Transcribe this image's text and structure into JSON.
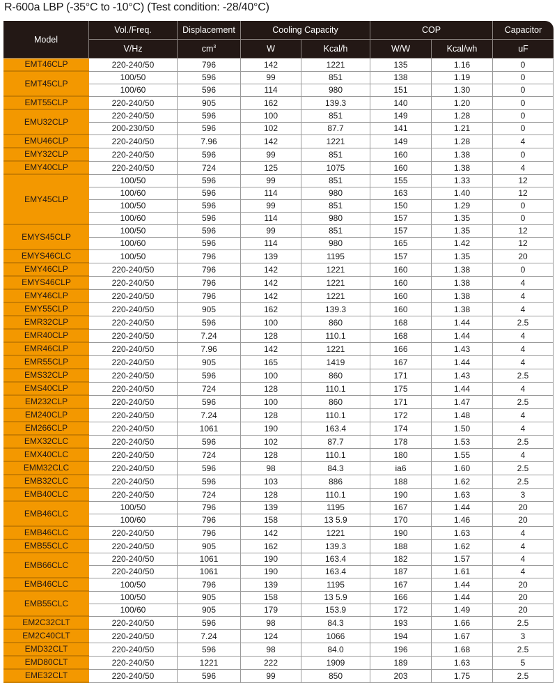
{
  "title": "R-600a LBP (-35°C to -10°C) (Test condition: -28/40°C)",
  "colors": {
    "header_bg": "#231815",
    "model_bg": "#F39800"
  },
  "header": {
    "model": "Model",
    "vol_freq": "Vol./Freq.",
    "displacement": "Displacement",
    "cooling_capacity": "Cooling Capacity",
    "cop": "COP",
    "capacitor": "Capacitor",
    "units": {
      "vhz": "V/Hz",
      "cm": "cm",
      "cm_sup": "3",
      "w": "W",
      "kcalh": "Kcal/h",
      "ww": "W/W",
      "kcalwh": "Kcal/wh",
      "uf": "uF"
    }
  },
  "groups": [
    {
      "model": "EMT46CLP",
      "rows": [
        [
          "220-240/50",
          "796",
          "142",
          "1221",
          "135",
          "1.16",
          "0"
        ]
      ]
    },
    {
      "model": "EMT45CLP",
      "rows": [
        [
          "100/50",
          "596",
          "99",
          "851",
          "138",
          "1.19",
          "0"
        ],
        [
          "100/60",
          "596",
          "114",
          "980",
          "151",
          "1.30",
          "0"
        ]
      ]
    },
    {
      "model": "EMT55CLP",
      "rows": [
        [
          "220-240/50",
          "905",
          "162",
          "139.3",
          "140",
          "1.20",
          "0"
        ]
      ]
    },
    {
      "model": "EMU32CLP",
      "rows": [
        [
          "220-240/50",
          "596",
          "100",
          "851",
          "149",
          "1.28",
          "0"
        ],
        [
          "200-230/50",
          "596",
          "102",
          "87.7",
          "141",
          "1.21",
          "0"
        ]
      ]
    },
    {
      "model": "EMU46CLP",
      "rows": [
        [
          "220-240/50",
          "7.96",
          "142",
          "1221",
          "149",
          "1.28",
          "4"
        ]
      ]
    },
    {
      "model": "EMY32CLP",
      "rows": [
        [
          "220-240/50",
          "596",
          "99",
          "851",
          "160",
          "1.38",
          "0"
        ]
      ]
    },
    {
      "model": "EMY40CLP",
      "rows": [
        [
          "220-240/50",
          "724",
          "125",
          "1075",
          "160",
          "1.38",
          "4"
        ]
      ]
    },
    {
      "model": "EMY45CLP",
      "rows": [
        [
          "100/50",
          "596",
          "99",
          "851",
          "155",
          "1.33",
          "12"
        ],
        [
          "100/60",
          "596",
          "114",
          "980",
          "163",
          "1.40",
          "12"
        ],
        [
          "100/50",
          "596",
          "99",
          "851",
          "150",
          "1.29",
          "0"
        ],
        [
          "100/60",
          "596",
          "114",
          "980",
          "157",
          "1.35",
          "0"
        ]
      ]
    },
    {
      "model": "EMYS45CLP",
      "rows": [
        [
          "100/50",
          "596",
          "99",
          "851",
          "157",
          "1.35",
          "12"
        ],
        [
          "100/60",
          "596",
          "114",
          "980",
          "165",
          "1.42",
          "12"
        ]
      ]
    },
    {
      "model": "EMYS46CLC",
      "rows": [
        [
          "100/50",
          "796",
          "139",
          "1195",
          "157",
          "1.35",
          "20"
        ]
      ]
    },
    {
      "model": "EMY46CLP",
      "rows": [
        [
          "220-240/50",
          "796",
          "142",
          "1221",
          "160",
          "1.38",
          "0"
        ]
      ]
    },
    {
      "model": "EMYS46CLP",
      "rows": [
        [
          "220-240/50",
          "796",
          "142",
          "1221",
          "160",
          "1.38",
          "4"
        ]
      ]
    },
    {
      "model": "EMY46CLP",
      "rows": [
        [
          "220-240/50",
          "796",
          "142",
          "1221",
          "160",
          "1.38",
          "4"
        ]
      ]
    },
    {
      "model": "EMY55CLP",
      "rows": [
        [
          "220-240/50",
          "905",
          "162",
          "139.3",
          "160",
          "1.38",
          "4"
        ]
      ]
    },
    {
      "model": "EMR32CLP",
      "rows": [
        [
          "220-240/50",
          "596",
          "100",
          "860",
          "168",
          "1.44",
          "2.5"
        ]
      ]
    },
    {
      "model": "EMR40CLP",
      "rows": [
        [
          "220-240/50",
          "7.24",
          "128",
          "110.1",
          "168",
          "1.44",
          "4"
        ]
      ]
    },
    {
      "model": "EMR46CLP",
      "rows": [
        [
          "220-240/50",
          "7.96",
          "142",
          "1221",
          "166",
          "1.43",
          "4"
        ]
      ]
    },
    {
      "model": "EMR55CLP",
      "rows": [
        [
          "220-240/50",
          "905",
          "165",
          "1419",
          "167",
          "1.44",
          "4"
        ]
      ]
    },
    {
      "model": "EMS32CLP",
      "rows": [
        [
          "220-240/50",
          "596",
          "100",
          "860",
          "171",
          "1.43",
          "2.5"
        ]
      ]
    },
    {
      "model": "EMS40CLP",
      "rows": [
        [
          "220-240/50",
          "724",
          "128",
          "110.1",
          "175",
          "1.44",
          "4"
        ]
      ]
    },
    {
      "model": "EM232CLP",
      "rows": [
        [
          "220-240/50",
          "596",
          "100",
          "860",
          "171",
          "1.47",
          "2.5"
        ]
      ]
    },
    {
      "model": "EM240CLP",
      "rows": [
        [
          "220-240/50",
          "7.24",
          "128",
          "110.1",
          "172",
          "1.48",
          "4"
        ]
      ]
    },
    {
      "model": "EM266CLP",
      "rows": [
        [
          "220-240/50",
          "1061",
          "190",
          "163.4",
          "174",
          "1.50",
          "4"
        ]
      ]
    },
    {
      "model": "EMX32CLC",
      "rows": [
        [
          "220-240/50",
          "596",
          "102",
          "87.7",
          "178",
          "1.53",
          "2.5"
        ]
      ]
    },
    {
      "model": "EMX40CLC",
      "rows": [
        [
          "220-240/50",
          "724",
          "128",
          "110.1",
          "180",
          "1.55",
          "4"
        ]
      ]
    },
    {
      "model": "EMM32CLC",
      "rows": [
        [
          "220-240/50",
          "596",
          "98",
          "84.3",
          "ia6",
          "1.60",
          "2.5"
        ]
      ]
    },
    {
      "model": "EMB32CLC",
      "rows": [
        [
          "220-240/50",
          "596",
          "103",
          "886",
          "188",
          "1.62",
          "2.5"
        ]
      ]
    },
    {
      "model": "EMB40CLC",
      "rows": [
        [
          "220-240/50",
          "724",
          "128",
          "110.1",
          "190",
          "1.63",
          "3"
        ]
      ]
    },
    {
      "model": "EMB46CLC",
      "rows": [
        [
          "100/50",
          "796",
          "139",
          "1195",
          "167",
          "1.44",
          "20"
        ],
        [
          "100/60",
          "796",
          "158",
          "13 5.9",
          "170",
          "1.46",
          "20"
        ]
      ]
    },
    {
      "model": "EMB46CLC",
      "rows": [
        [
          "220-240/50",
          "796",
          "142",
          "1221",
          "190",
          "1.63",
          "4"
        ]
      ]
    },
    {
      "model": "EMB55CLC",
      "rows": [
        [
          "220-240/50",
          "905",
          "162",
          "139.3",
          "188",
          "1.62",
          "4"
        ]
      ]
    },
    {
      "model": "EMB66CLC",
      "rows": [
        [
          "220-240/50",
          "1061",
          "190",
          "163.4",
          "182",
          "1.57",
          "4"
        ],
        [
          "220-240/50",
          "1061",
          "190",
          "163.4",
          "187",
          "1.61",
          "4"
        ]
      ]
    },
    {
      "model": "EMB46CLC",
      "rows": [
        [
          "100/50",
          "796",
          "139",
          "1195",
          "167",
          "1.44",
          "20"
        ]
      ]
    },
    {
      "model": "EMB55CLC",
      "rows": [
        [
          "100/50",
          "905",
          "158",
          "13 5.9",
          "166",
          "1.44",
          "20"
        ],
        [
          "100/60",
          "905",
          "179",
          "153.9",
          "172",
          "1.49",
          "20"
        ]
      ]
    },
    {
      "model": "EM2C32CLT",
      "rows": [
        [
          "220-240/50",
          "596",
          "98",
          "84.3",
          "193",
          "1.66",
          "2.5"
        ]
      ]
    },
    {
      "model": "EM2C40CLT",
      "rows": [
        [
          "220-240/50",
          "7.24",
          "124",
          "1066",
          "194",
          "1.67",
          "3"
        ]
      ]
    },
    {
      "model": "EMD32CLT",
      "rows": [
        [
          "220-240/50",
          "596",
          "98",
          "84.0",
          "196",
          "1.68",
          "2.5"
        ]
      ]
    },
    {
      "model": "EMD80CLT",
      "rows": [
        [
          "220-240/50",
          "1221",
          "222",
          "1909",
          "189",
          "1.63",
          "5"
        ]
      ]
    },
    {
      "model": "EME32CLT",
      "rows": [
        [
          "220-240/50",
          "596",
          "99",
          "850",
          "203",
          "1.75",
          "2.5"
        ]
      ]
    }
  ]
}
